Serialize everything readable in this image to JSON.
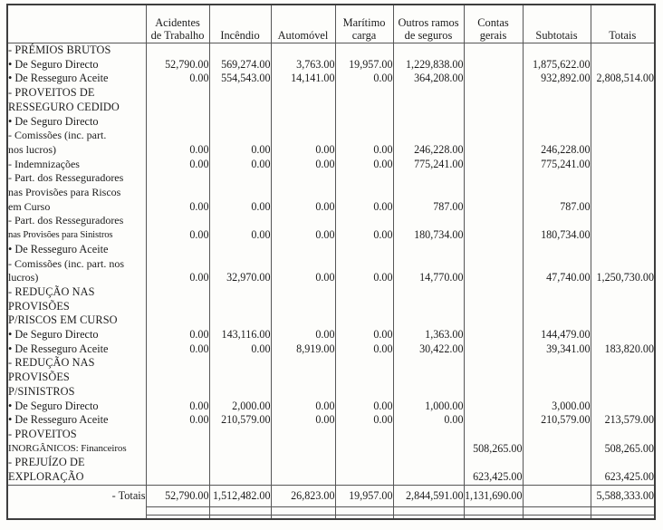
{
  "table": {
    "header": {
      "corner": "",
      "cols": [
        {
          "lines": [
            "Acidentes",
            "de Trabalho"
          ]
        },
        {
          "lines": [
            "Incêndio"
          ]
        },
        {
          "lines": [
            "Automóvel"
          ]
        },
        {
          "lines": [
            "Marítimo",
            "carga"
          ]
        },
        {
          "lines": [
            "Outros ramos",
            "de seguros"
          ]
        },
        {
          "lines": [
            "Contas",
            "gerais"
          ]
        },
        {
          "lines": [
            "Subtotais"
          ]
        },
        {
          "lines": [
            "Totais"
          ]
        }
      ]
    },
    "rows": [
      {
        "label": "- PRÉMIOS BRUTOS",
        "style": "sec",
        "values": [
          "",
          "",
          "",
          "",
          "",
          "",
          "",
          ""
        ]
      },
      {
        "label": "• De Seguro Directo",
        "style": "b",
        "values": [
          "52,790.00",
          "569,274.00",
          "3,763.00",
          "19,957.00",
          "1,229,838.00",
          "",
          "1,875,622.00",
          ""
        ]
      },
      {
        "label": "• De Resseguro Aceite",
        "style": "b",
        "values": [
          "0.00",
          "554,543.00",
          "14,141.00",
          "0.00",
          "364,208.00",
          "",
          "932,892.00",
          "2,808,514.00"
        ]
      },
      {
        "label": "- PROVEITOS DE",
        "style": "sec",
        "values": [
          "",
          "",
          "",
          "",
          "",
          "",
          "",
          ""
        ]
      },
      {
        "label": "RESSEGURO CEDIDO",
        "style": "secc",
        "values": [
          "",
          "",
          "",
          "",
          "",
          "",
          "",
          ""
        ]
      },
      {
        "label": "• De Seguro Directo",
        "style": "b",
        "values": [
          "",
          "",
          "",
          "",
          "",
          "",
          "",
          ""
        ]
      },
      {
        "label": "- Comissões (inc. part.",
        "style": "d",
        "values": [
          "",
          "",
          "",
          "",
          "",
          "",
          "",
          ""
        ]
      },
      {
        "label": "nos lucros)",
        "style": "dc",
        "values": [
          "0.00",
          "0.00",
          "0.00",
          "0.00",
          "246,228.00",
          "",
          "246,228.00",
          ""
        ]
      },
      {
        "label": "- Indemnizações",
        "style": "d",
        "values": [
          "0.00",
          "0.00",
          "0.00",
          "0.00",
          "775,241.00",
          "",
          "775,241.00",
          ""
        ]
      },
      {
        "label": "- Part. dos Resseguradores",
        "style": "d",
        "values": [
          "",
          "",
          "",
          "",
          "",
          "",
          "",
          ""
        ]
      },
      {
        "label": "nas Provisões para Riscos",
        "style": "dc",
        "values": [
          "",
          "",
          "",
          "",
          "",
          "",
          "",
          ""
        ]
      },
      {
        "label": "em Curso",
        "style": "dc",
        "values": [
          "0.00",
          "0.00",
          "0.00",
          "0.00",
          "787.00",
          "",
          "787.00",
          ""
        ]
      },
      {
        "label": "- Part. dos Resseguradores",
        "style": "d",
        "values": [
          "",
          "",
          "",
          "",
          "",
          "",
          "",
          ""
        ]
      },
      {
        "label": "nas Provisões para Sinistros",
        "style": "dcs",
        "values": [
          "0.00",
          "0.00",
          "0.00",
          "0.00",
          "180,734.00",
          "",
          "180,734.00",
          ""
        ]
      },
      {
        "label": "• De Resseguro Aceite",
        "style": "b",
        "values": [
          "",
          "",
          "",
          "",
          "",
          "",
          "",
          ""
        ]
      },
      {
        "label": "- Comissões (inc. part. nos",
        "style": "d",
        "values": [
          "",
          "",
          "",
          "",
          "",
          "",
          "",
          ""
        ]
      },
      {
        "label": "lucros)",
        "style": "dc",
        "values": [
          "0.00",
          "32,970.00",
          "0.00",
          "0.00",
          "14,770.00",
          "",
          "47,740.00",
          "1,250,730.00"
        ]
      },
      {
        "label": "- REDUÇÃO NAS",
        "style": "sec",
        "values": [
          "",
          "",
          "",
          "",
          "",
          "",
          "",
          ""
        ]
      },
      {
        "label": "PROVISÕES",
        "style": "secc",
        "values": [
          "",
          "",
          "",
          "",
          "",
          "",
          "",
          ""
        ]
      },
      {
        "label": "P/RISCOS EM CURSO",
        "style": "secc",
        "values": [
          "",
          "",
          "",
          "",
          "",
          "",
          "",
          ""
        ]
      },
      {
        "label": "• De Seguro Directo",
        "style": "b",
        "values": [
          "0.00",
          "143,116.00",
          "0.00",
          "0.00",
          "1,363.00",
          "",
          "144,479.00",
          ""
        ]
      },
      {
        "label": "• De Resseguro Aceite",
        "style": "b",
        "values": [
          "0.00",
          "0.00",
          "8,919.00",
          "0.00",
          "30,422.00",
          "",
          "39,341.00",
          "183,820.00"
        ]
      },
      {
        "label": "- REDUÇÃO NAS",
        "style": "sec",
        "values": [
          "",
          "",
          "",
          "",
          "",
          "",
          "",
          ""
        ]
      },
      {
        "label": "PROVISÕES",
        "style": "secc",
        "values": [
          "",
          "",
          "",
          "",
          "",
          "",
          "",
          ""
        ]
      },
      {
        "label": "P/SINISTROS",
        "style": "secc",
        "values": [
          "",
          "",
          "",
          "",
          "",
          "",
          "",
          ""
        ]
      },
      {
        "label": "• De Seguro Directo",
        "style": "b",
        "values": [
          "0.00",
          "2,000.00",
          "0.00",
          "0.00",
          "1,000.00",
          "",
          "3,000.00",
          ""
        ]
      },
      {
        "label": "• De Resseguro Aceite",
        "style": "b",
        "values": [
          "0.00",
          "210,579.00",
          "0.00",
          "0.00",
          "0.00",
          "",
          "210,579.00",
          "213,579.00"
        ]
      },
      {
        "label": "- PROVEITOS",
        "style": "sec",
        "values": [
          "",
          "",
          "",
          "",
          "",
          "",
          "",
          ""
        ]
      },
      {
        "label": "INORGÂNICOS: Financeiros",
        "style": "seccs",
        "values": [
          "",
          "",
          "",
          "",
          "",
          "508,265.00",
          "",
          "508,265.00"
        ]
      },
      {
        "label": "- PREJUÍZO DE",
        "style": "sec",
        "values": [
          "",
          "",
          "",
          "",
          "",
          "",
          "",
          ""
        ]
      },
      {
        "label": "EXPLORAÇÃO",
        "style": "secc",
        "values": [
          "",
          "",
          "",
          "",
          "",
          "623,425.00",
          "",
          "623,425.00"
        ]
      }
    ],
    "totals": {
      "label": "- Totais",
      "values": [
        "52,790.00",
        "1,512,482.00",
        "26,823.00",
        "19,957.00",
        "2,844,591.00",
        "1,131,690.00",
        "",
        "5,588,333.00"
      ]
    }
  }
}
